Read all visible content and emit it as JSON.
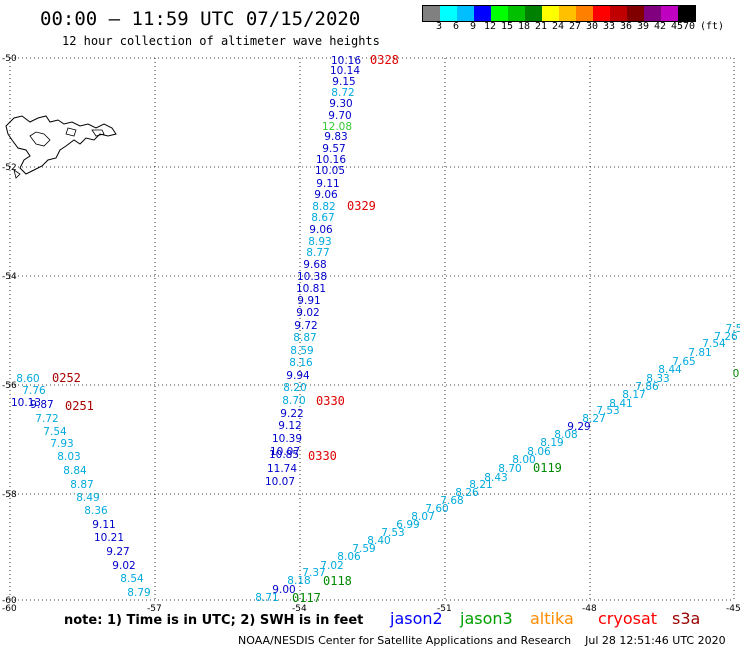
{
  "title": "00:00 – 11:59 UTC 07/15/2020",
  "subtitle": "12 hour collection of altimeter wave heights",
  "colorbar": {
    "colors": [
      "#808080",
      "#00ffff",
      "#00bfff",
      "#0000ff",
      "#00ff00",
      "#00c000",
      "#008000",
      "#ffff00",
      "#ffc000",
      "#ff8000",
      "#ff0000",
      "#c00000",
      "#800000",
      "#800080",
      "#c000c0",
      "#000000"
    ],
    "labels": [
      "3",
      "6",
      "9",
      "12",
      "15",
      "18",
      "21",
      "24",
      "27",
      "30",
      "33",
      "36",
      "39",
      "42",
      "45",
      "70"
    ],
    "units": "(ft)"
  },
  "axes": {
    "lat_labels": [
      "-50",
      "-52",
      "-54",
      "-56",
      "-58",
      "-60"
    ],
    "lon_labels": [
      "-60",
      "-57",
      "-54",
      "-51",
      "-48",
      "-45"
    ]
  },
  "tracks": [
    {
      "id": "track-0328",
      "pass": "0328",
      "pass_color": "#e00000",
      "color_default": "#0000cc",
      "points": [
        [
          "10.16",
          "#0000cc"
        ],
        [
          "10.14",
          "#0000cc"
        ],
        [
          "9.15",
          "#0000cc"
        ],
        [
          "8.72",
          "#00aadd"
        ],
        [
          "9.30",
          "#0000cc"
        ],
        [
          "9.70",
          "#0000cc"
        ],
        [
          "12.08",
          "#33cc33"
        ],
        [
          "9.83",
          "#0000cc"
        ],
        [
          "9.57",
          "#0000cc"
        ],
        [
          "10.16",
          "#0000cc"
        ],
        [
          "10.05",
          "#0000cc"
        ],
        [
          "9.11",
          "#0000cc"
        ],
        [
          "9.06",
          "#0000cc"
        ],
        [
          "8.82",
          "#00aadd"
        ]
      ]
    },
    {
      "id": "track-0329",
      "pass": "0329",
      "pass_color": "#e00000",
      "points": [
        [
          "8.67",
          "#00aadd"
        ],
        [
          "9.06",
          "#0000cc"
        ],
        [
          "8.93",
          "#00aadd"
        ],
        [
          "8.77",
          "#00aadd"
        ],
        [
          "9.68",
          "#0000cc"
        ],
        [
          "10.38",
          "#0000cc"
        ],
        [
          "10.81",
          "#0000cc"
        ],
        [
          "9.91",
          "#0000cc"
        ],
        [
          "9.02",
          "#0000cc"
        ],
        [
          "9.72",
          "#0000cc"
        ],
        [
          "8.87",
          "#00aadd"
        ],
        [
          "8.59",
          "#00aadd"
        ],
        [
          "8.16",
          "#00aadd"
        ]
      ]
    },
    {
      "id": "track-0330",
      "pass": "0330",
      "pass_color": "#e00000",
      "points": [
        [
          "9.94",
          "#0000cc"
        ],
        [
          "8.20",
          "#00aadd"
        ],
        [
          "8.70",
          "#00aadd"
        ],
        [
          "9.22",
          "#0000cc"
        ],
        [
          "9.12",
          "#0000cc"
        ],
        [
          "10.39",
          "#0000cc"
        ],
        [
          "10.07",
          "#0000cc"
        ],
        [
          "10.85",
          "#0000cc"
        ],
        [
          "11.74",
          "#0000cc"
        ],
        [
          "10.07",
          "#0000cc"
        ]
      ]
    },
    {
      "id": "track-0252",
      "pass": "0252",
      "pass_color": "#aa0000",
      "points": [
        [
          "8.60",
          "#00aadd"
        ],
        [
          "7.76",
          "#00aadd"
        ],
        [
          "10.13",
          "#0000cc"
        ],
        [
          "9.87",
          "#0000cc"
        ],
        [
          "7.72",
          "#00aadd"
        ],
        [
          "7.54",
          "#00aadd"
        ],
        [
          "7.93",
          "#00aadd"
        ],
        [
          "8.03",
          "#00aadd"
        ],
        [
          "8.84",
          "#00aadd"
        ],
        [
          "8.87",
          "#00aadd"
        ],
        [
          "8.49",
          "#00aadd"
        ],
        [
          "8.36",
          "#00aadd"
        ],
        [
          "9.11",
          "#0000cc"
        ],
        [
          "10.21",
          "#0000cc"
        ],
        [
          "9.27",
          "#0000cc"
        ],
        [
          "9.02",
          "#0000cc"
        ],
        [
          "8.54",
          "#00aadd"
        ],
        [
          "8.79",
          "#00aadd"
        ]
      ]
    },
    {
      "id": "track-diag",
      "pass_labels": [
        [
          "0117",
          "#008800"
        ],
        [
          "0118",
          "#008800"
        ],
        [
          "0119",
          "#008800"
        ]
      ],
      "points": [
        [
          "8.71",
          "#00aadd"
        ],
        [
          "9.00",
          "#0000cc"
        ],
        [
          "8.18",
          "#00aadd"
        ],
        [
          "7.37",
          "#00aadd"
        ],
        [
          "7.02",
          "#00aadd"
        ],
        [
          "8.06",
          "#00aadd"
        ],
        [
          "7.59",
          "#00aadd"
        ],
        [
          "8.40",
          "#00aadd"
        ],
        [
          "7.53",
          "#00aadd"
        ],
        [
          "6.99",
          "#00aadd"
        ],
        [
          "8.07",
          "#00aadd"
        ],
        [
          "7.60",
          "#00aadd"
        ],
        [
          "7.68",
          "#00aadd"
        ],
        [
          "8.26",
          "#00aadd"
        ],
        [
          "8.21",
          "#00aadd"
        ],
        [
          "8.43",
          "#00aadd"
        ],
        [
          "8.70",
          "#00aadd"
        ],
        [
          "8.00",
          "#00aadd"
        ],
        [
          "8.06",
          "#00aadd"
        ],
        [
          "8.19",
          "#00aadd"
        ],
        [
          "8.08",
          "#00aadd"
        ],
        [
          "9.29",
          "#0000cc"
        ],
        [
          "8.27",
          "#00aadd"
        ],
        [
          "7.53",
          "#00aadd"
        ],
        [
          "8.41",
          "#00aadd"
        ],
        [
          "8.17",
          "#00aadd"
        ],
        [
          "7.86",
          "#00aadd"
        ],
        [
          "8.33",
          "#00aadd"
        ],
        [
          "8.44",
          "#00aadd"
        ],
        [
          "7.65",
          "#00aadd"
        ],
        [
          "7.81",
          "#00aadd"
        ],
        [
          "7.54",
          "#00aadd"
        ],
        [
          "7.26",
          "#00aadd"
        ],
        [
          "7.5",
          "#00aadd"
        ],
        [
          "0",
          "#008800"
        ]
      ]
    }
  ],
  "note": "note: 1) Time is in UTC; 2) SWH is in feet",
  "satellites": [
    {
      "name": "jason2",
      "color": "#0000ff"
    },
    {
      "name": "jason3",
      "color": "#00a000"
    },
    {
      "name": "altika",
      "color": "#ff8c00"
    },
    {
      "name": "cryosat",
      "color": "#ff0000"
    },
    {
      "name": "s3a",
      "color": "#990000"
    }
  ],
  "footer": "NOAA/NESDIS Center for Satellite Applications and Research    Jul 28 12:51:46 UTC 2020"
}
